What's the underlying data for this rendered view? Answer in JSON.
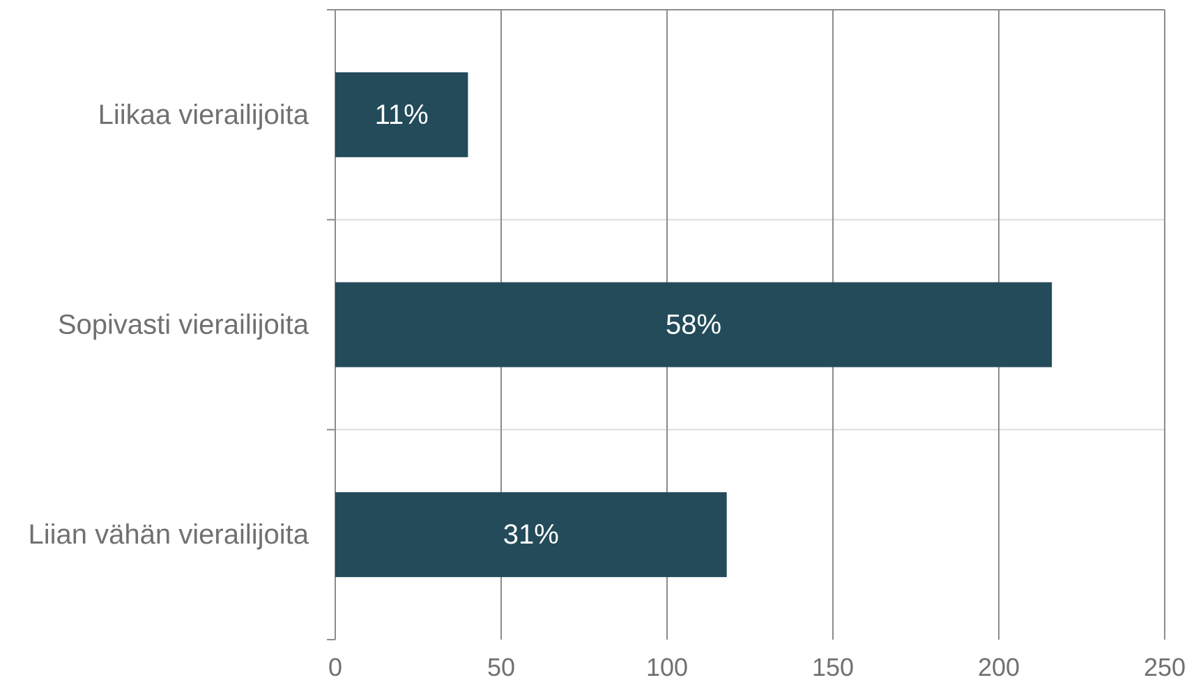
{
  "chart_data": {
    "type": "bar",
    "orientation": "horizontal",
    "categories": [
      "Liikaa vierailijoita",
      "Sopivasti vierailijoita",
      "Liian vähän vierailijoita"
    ],
    "values": [
      40,
      216,
      118
    ],
    "data_labels": [
      "11%",
      "58%",
      "31%"
    ],
    "xlim": [
      0,
      250
    ],
    "x_ticks": [
      0,
      50,
      100,
      150,
      200,
      250
    ],
    "x_tick_labels": [
      "0",
      "50",
      "100",
      "150",
      "200",
      "250"
    ],
    "grid": true,
    "legend": "none",
    "colors": {
      "bar": "#234b5a",
      "grid_vertical": "#8c8c8c",
      "grid_horizontal": "#dcdcdc",
      "axis_text": "#707070",
      "data_label_text": "#ffffff"
    }
  }
}
